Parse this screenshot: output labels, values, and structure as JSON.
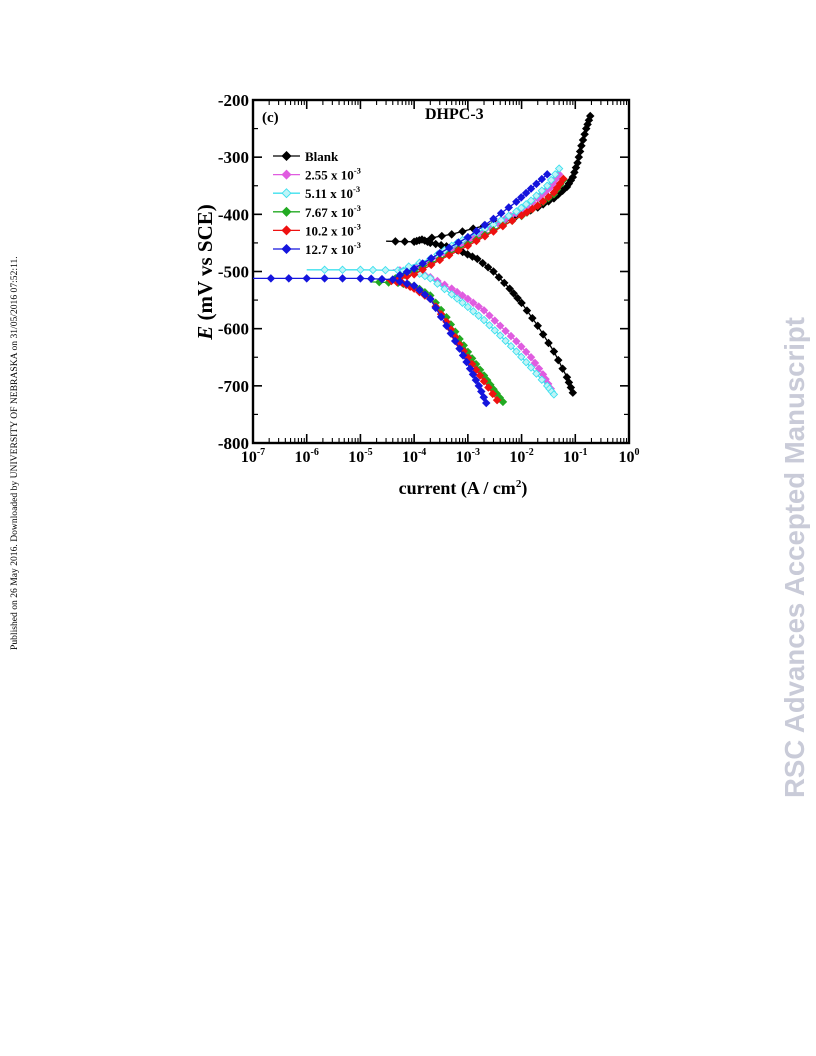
{
  "page": {
    "side_note": "Published on 26 May 2016. Downloaded by UNIVERSITY OF NEBRASKA on 31/05/2016 07:52:11.",
    "watermark": "RSC Advances Accepted Manuscript"
  },
  "chart_data": {
    "type": "line",
    "panel_label": "(c)",
    "title": "DHPC-3",
    "xlabel": "current (A / cm²)",
    "xlabel_parts": {
      "main": "current (A / cm",
      "sup": "2",
      "end": ")"
    },
    "ylabel": "E (mV vs SCE)",
    "ylabel_parts": {
      "italic": "E",
      "rest": " (mV vs SCE)"
    },
    "x_scale": "log",
    "xlim": [
      1e-07,
      1
    ],
    "ylim": [
      -800,
      -200
    ],
    "x_ticks": [
      {
        "value": 1e-07,
        "base": "10",
        "exp": "-7"
      },
      {
        "value": 1e-06,
        "base": "10",
        "exp": "-6"
      },
      {
        "value": 1e-05,
        "base": "10",
        "exp": "-5"
      },
      {
        "value": 0.0001,
        "base": "10",
        "exp": "-4"
      },
      {
        "value": 0.001,
        "base": "10",
        "exp": "-3"
      },
      {
        "value": 0.01,
        "base": "10",
        "exp": "-2"
      },
      {
        "value": 0.1,
        "base": "10",
        "exp": "-1"
      },
      {
        "value": 1,
        "base": "10",
        "exp": "0"
      }
    ],
    "y_ticks": [
      {
        "value": -200,
        "label": "-200"
      },
      {
        "value": -300,
        "label": "-300"
      },
      {
        "value": -400,
        "label": "-400"
      },
      {
        "value": -500,
        "label": "-500"
      },
      {
        "value": -600,
        "label": "-600"
      },
      {
        "value": -700,
        "label": "-700"
      },
      {
        "value": -800,
        "label": "-800"
      }
    ],
    "grid": false,
    "legend_position": "top-left",
    "series": [
      {
        "label": "Blank",
        "label_parts": {
          "main": "Blank",
          "exp": ""
        },
        "color": "#000000",
        "marker": "diamond",
        "marker_fill": "#000000",
        "ecorr": -445,
        "cathodic": [
          [
            3e-05,
            -447
          ],
          [
            0.0001,
            -448
          ],
          [
            0.00014,
            -444
          ],
          [
            0.0002,
            -450
          ],
          [
            0.0004,
            -456
          ],
          [
            0.0008,
            -466
          ],
          [
            0.0015,
            -478
          ],
          [
            0.003,
            -500
          ],
          [
            0.006,
            -530
          ],
          [
            0.01,
            -555
          ],
          [
            0.02,
            -595
          ],
          [
            0.04,
            -640
          ],
          [
            0.07,
            -685
          ],
          [
            0.09,
            -712
          ]
        ],
        "anodic": [
          [
            0.00014,
            -444
          ],
          [
            0.0005,
            -435
          ],
          [
            0.002,
            -420
          ],
          [
            0.008,
            -403
          ],
          [
            0.02,
            -388
          ],
          [
            0.04,
            -372
          ],
          [
            0.07,
            -352
          ],
          [
            0.09,
            -335
          ],
          [
            0.11,
            -310
          ],
          [
            0.13,
            -280
          ],
          [
            0.16,
            -250
          ],
          [
            0.19,
            -228
          ]
        ]
      },
      {
        "label": "2.55 x 10-3",
        "label_parts": {
          "main": "2.55 x 10",
          "exp": "-3"
        },
        "color": "#e05ce0",
        "marker": "diamond",
        "marker_fill": "#e05ce0",
        "ecorr": -497,
        "cathodic": [
          [
            4e-05,
            -497
          ],
          [
            0.0001,
            -500
          ],
          [
            0.0002,
            -510
          ],
          [
            0.0005,
            -530
          ],
          [
            0.001,
            -548
          ],
          [
            0.002,
            -568
          ],
          [
            0.004,
            -595
          ],
          [
            0.008,
            -622
          ],
          [
            0.015,
            -650
          ],
          [
            0.025,
            -680
          ],
          [
            0.035,
            -705
          ]
        ],
        "anodic": [
          [
            8e-05,
            -497
          ],
          [
            0.0002,
            -482
          ],
          [
            0.0005,
            -462
          ],
          [
            0.001,
            -447
          ],
          [
            0.002,
            -432
          ],
          [
            0.005,
            -408
          ],
          [
            0.01,
            -393
          ],
          [
            0.02,
            -372
          ],
          [
            0.035,
            -352
          ],
          [
            0.05,
            -330
          ]
        ]
      },
      {
        "label": "5.11 x 10-3",
        "label_parts": {
          "main": "5.11 x 10",
          "exp": "-3"
        },
        "color": "#3ee0ee",
        "marker": "diamond",
        "marker_fill": "#bff4f7",
        "ecorr": -497,
        "cathodic": [
          [
            1e-06,
            -497
          ],
          [
            1e-05,
            -497
          ],
          [
            5e-05,
            -498
          ],
          [
            0.0001,
            -500
          ],
          [
            0.0002,
            -512
          ],
          [
            0.0005,
            -540
          ],
          [
            0.001,
            -562
          ],
          [
            0.002,
            -585
          ],
          [
            0.004,
            -612
          ],
          [
            0.008,
            -640
          ],
          [
            0.015,
            -668
          ],
          [
            0.03,
            -700
          ],
          [
            0.04,
            -715
          ]
        ],
        "anodic": [
          [
            5e-05,
            -498
          ],
          [
            0.0002,
            -478
          ],
          [
            0.0005,
            -455
          ],
          [
            0.001,
            -440
          ],
          [
            0.003,
            -418
          ],
          [
            0.008,
            -395
          ],
          [
            0.015,
            -376
          ],
          [
            0.03,
            -350
          ],
          [
            0.05,
            -320
          ]
        ]
      },
      {
        "label": "7.67 x 10-3",
        "label_parts": {
          "main": "7.67 x 10",
          "exp": "-3"
        },
        "color": "#22aa22",
        "marker": "diamond",
        "marker_fill": "#22aa22",
        "ecorr": -518,
        "cathodic": [
          [
            1.5e-05,
            -518
          ],
          [
            5e-05,
            -520
          ],
          [
            0.0001,
            -525
          ],
          [
            0.0002,
            -542
          ],
          [
            0.0004,
            -580
          ],
          [
            0.0007,
            -618
          ],
          [
            0.0012,
            -652
          ],
          [
            0.002,
            -682
          ],
          [
            0.003,
            -706
          ],
          [
            0.0045,
            -728
          ]
        ],
        "anodic": [
          [
            3e-05,
            -518
          ],
          [
            0.0001,
            -500
          ],
          [
            0.0003,
            -478
          ],
          [
            0.001,
            -452
          ],
          [
            0.003,
            -428
          ],
          [
            0.01,
            -403
          ],
          [
            0.02,
            -385
          ],
          [
            0.04,
            -365
          ],
          [
            0.06,
            -340
          ]
        ]
      },
      {
        "label": "10.2 x 10-3",
        "label_parts": {
          "main": "10.2 x 10",
          "exp": "-3"
        },
        "color": "#ee1111",
        "marker": "diamond",
        "marker_fill": "#ee1111",
        "ecorr": -515,
        "cathodic": [
          [
            3e-05,
            -515
          ],
          [
            6e-05,
            -520
          ],
          [
            0.0001,
            -530
          ],
          [
            0.0002,
            -548
          ],
          [
            0.0004,
            -588
          ],
          [
            0.0007,
            -628
          ],
          [
            0.0012,
            -662
          ],
          [
            0.002,
            -692
          ],
          [
            0.0035,
            -725
          ]
        ],
        "anodic": [
          [
            4e-05,
            -515
          ],
          [
            0.0001,
            -505
          ],
          [
            0.0003,
            -480
          ],
          [
            0.001,
            -455
          ],
          [
            0.003,
            -430
          ],
          [
            0.01,
            -402
          ],
          [
            0.02,
            -385
          ],
          [
            0.04,
            -362
          ],
          [
            0.06,
            -338
          ]
        ]
      },
      {
        "label": "12.7 x 10-3",
        "label_parts": {
          "main": "12.7 x 10",
          "exp": "-3"
        },
        "color": "#1515dd",
        "marker": "diamond",
        "marker_fill": "#1515dd",
        "ecorr": -512,
        "cathodic": [
          [
            1e-07,
            -512
          ],
          [
            1e-06,
            -512
          ],
          [
            1e-05,
            -512
          ],
          [
            4e-05,
            -514
          ],
          [
            0.0001,
            -525
          ],
          [
            0.0002,
            -548
          ],
          [
            0.0004,
            -595
          ],
          [
            0.0007,
            -635
          ],
          [
            0.0011,
            -670
          ],
          [
            0.0016,
            -700
          ],
          [
            0.0022,
            -730
          ]
        ],
        "anodic": [
          [
            4e-05,
            -512
          ],
          [
            0.0001,
            -495
          ],
          [
            0.0003,
            -468
          ],
          [
            0.001,
            -440
          ],
          [
            0.003,
            -408
          ],
          [
            0.008,
            -378
          ],
          [
            0.015,
            -355
          ],
          [
            0.03,
            -330
          ]
        ]
      }
    ]
  }
}
